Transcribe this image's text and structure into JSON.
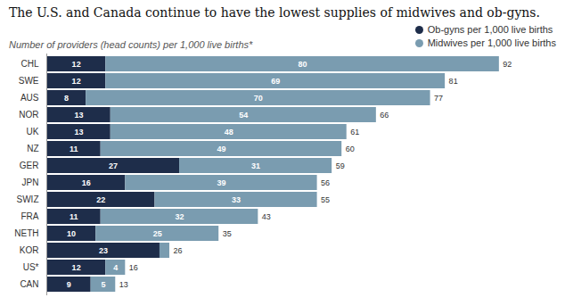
{
  "chart_data": {
    "type": "bar",
    "orientation": "horizontal",
    "stacked": true,
    "title": "The U.S. and Canada continue to have the lowest supplies of midwives and ob-gyns.",
    "subtitle": "Number of providers (head counts) per 1,000 live births*",
    "categories": [
      "CHL",
      "SWE",
      "AUS",
      "NOR",
      "UK",
      "NZ",
      "GER",
      "JPN",
      "SWIZ",
      "FRA",
      "NETH",
      "KOR",
      "US*",
      "CAN"
    ],
    "series": [
      {
        "name": "Ob-gyns per 1,000 live births",
        "color": "#1e2d4a",
        "values": [
          12,
          12,
          8,
          13,
          13,
          11,
          27,
          16,
          22,
          11,
          10,
          23,
          12,
          9
        ]
      },
      {
        "name": "Midwives per 1,000 live births",
        "color": "#7a9cb0",
        "values": [
          80,
          69,
          70,
          54,
          48,
          49,
          31,
          39,
          33,
          32,
          25,
          2,
          4,
          5
        ],
        "value_labels": [
          "80",
          "69",
          "70",
          "54",
          "48",
          "49",
          "31",
          "39",
          "33",
          "32",
          "25",
          null,
          "4",
          "5"
        ]
      }
    ],
    "totals": [
      92,
      81,
      77,
      66,
      61,
      60,
      59,
      56,
      55,
      43,
      35,
      26,
      16,
      13
    ],
    "xlim": [
      0,
      100
    ],
    "data_labels": true,
    "tick_labels": "y",
    "grid": false,
    "legend": "upper right"
  }
}
